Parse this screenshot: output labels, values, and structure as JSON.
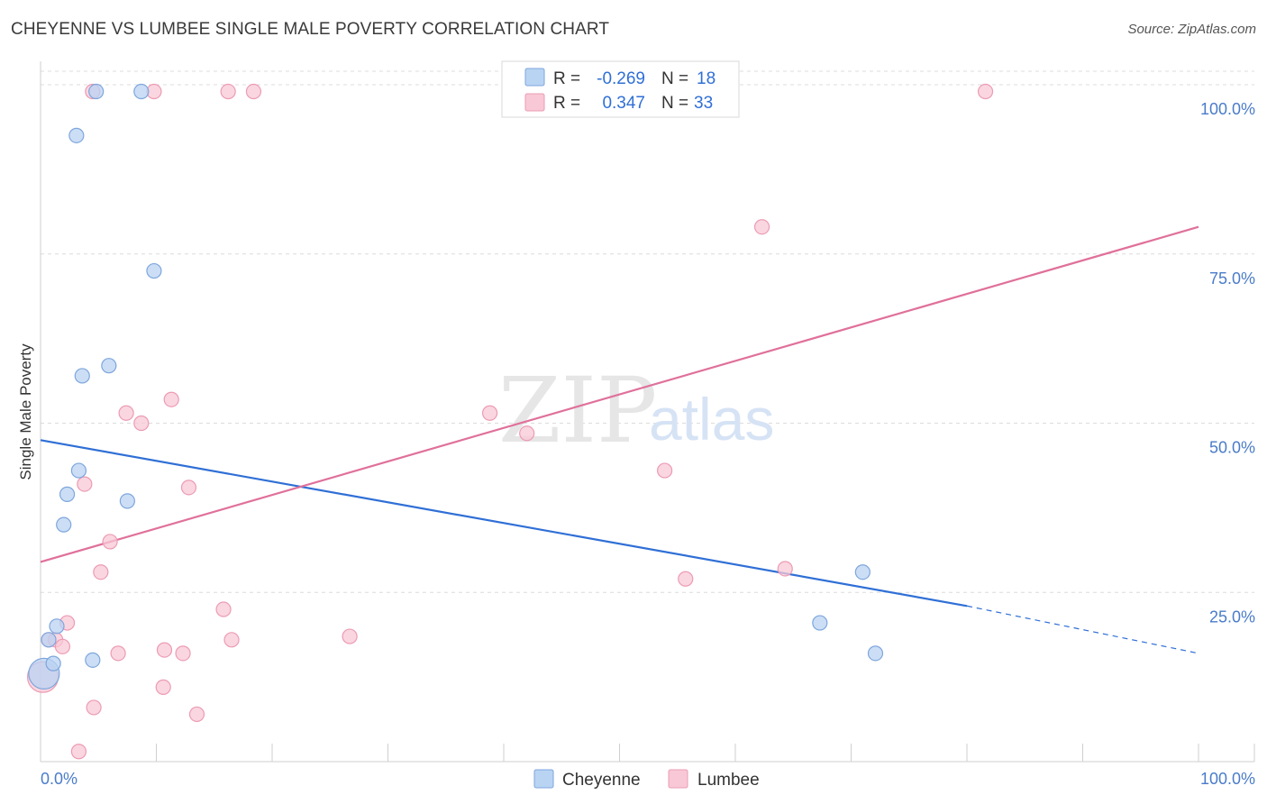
{
  "header": {
    "title": "CHEYENNE VS LUMBEE SINGLE MALE POVERTY CORRELATION CHART",
    "source": "Source: ZipAtlas.com"
  },
  "watermark": {
    "zip": "ZIP",
    "atlas": "atlas"
  },
  "colors": {
    "cheyenne_fill": "#b9d3f3",
    "cheyenne_stroke": "#7ea6dc",
    "cheyenne_line": "#2f6fd6",
    "lumbee_fill": "#f8c8d6",
    "lumbee_stroke": "#ec9bb4",
    "lumbee_line": "#e0709a",
    "grid": "#dcdcdc",
    "tick_label": "#4a7cc9"
  },
  "legend_top": {
    "rows": [
      {
        "r_label": "R =",
        "r_value": "-0.269",
        "n_label": "N =",
        "n_value": "18"
      },
      {
        "r_label": "R =",
        "r_value": "0.347",
        "n_label": "N =",
        "n_value": "33"
      }
    ]
  },
  "legend_bottom": {
    "items": [
      "Cheyenne",
      "Lumbee"
    ]
  },
  "chart_data": {
    "type": "scatter",
    "title": "CHEYENNE VS LUMBEE SINGLE MALE POVERTY CORRELATION CHART",
    "xlabel": "",
    "ylabel": "Single Male Poverty",
    "xlim": [
      0,
      100
    ],
    "ylim": [
      0,
      102
    ],
    "x_tick_labels": [
      "0.0%",
      "100.0%"
    ],
    "y_ticks": [
      25,
      50,
      75,
      100
    ],
    "y_tick_labels": [
      "25.0%",
      "50.0%",
      "75.0%",
      "100.0%"
    ],
    "series": [
      {
        "name": "Cheyenne",
        "r": -0.269,
        "n": 18,
        "points": [
          {
            "x": 0.3,
            "y": 13.0,
            "big": true
          },
          {
            "x": 0.7,
            "y": 18.0
          },
          {
            "x": 1.1,
            "y": 14.5
          },
          {
            "x": 1.4,
            "y": 20.0
          },
          {
            "x": 2.0,
            "y": 35.0
          },
          {
            "x": 2.3,
            "y": 39.5
          },
          {
            "x": 3.1,
            "y": 92.5
          },
          {
            "x": 3.3,
            "y": 43.0
          },
          {
            "x": 3.6,
            "y": 57.0
          },
          {
            "x": 4.5,
            "y": 15.0
          },
          {
            "x": 4.8,
            "y": 99.0
          },
          {
            "x": 5.9,
            "y": 58.5
          },
          {
            "x": 7.5,
            "y": 38.5
          },
          {
            "x": 8.7,
            "y": 99.0
          },
          {
            "x": 9.8,
            "y": 72.5
          },
          {
            "x": 67.3,
            "y": 20.5
          },
          {
            "x": 71.0,
            "y": 28.0
          },
          {
            "x": 72.1,
            "y": 16.0
          }
        ],
        "trend": {
          "x0": 0,
          "y0": 47.5,
          "x1": 80,
          "y1": 23.0,
          "dash_to_x": 100,
          "dash_to_y": 16.0
        }
      },
      {
        "name": "Lumbee",
        "r": 0.347,
        "n": 33,
        "points": [
          {
            "x": 0.2,
            "y": 12.5,
            "big": true
          },
          {
            "x": 0.7,
            "y": 18.0
          },
          {
            "x": 1.3,
            "y": 18.0
          },
          {
            "x": 1.9,
            "y": 17.0
          },
          {
            "x": 2.3,
            "y": 20.5
          },
          {
            "x": 3.3,
            "y": 1.5
          },
          {
            "x": 3.8,
            "y": 41.0
          },
          {
            "x": 4.6,
            "y": 8.0
          },
          {
            "x": 4.5,
            "y": 99.0
          },
          {
            "x": 5.2,
            "y": 28.0
          },
          {
            "x": 6.0,
            "y": 32.5
          },
          {
            "x": 6.7,
            "y": 16.0
          },
          {
            "x": 7.4,
            "y": 51.5
          },
          {
            "x": 8.7,
            "y": 50.0
          },
          {
            "x": 9.8,
            "y": 99.0
          },
          {
            "x": 10.6,
            "y": 11.0
          },
          {
            "x": 10.7,
            "y": 16.5
          },
          {
            "x": 11.3,
            "y": 53.5
          },
          {
            "x": 12.3,
            "y": 16.0
          },
          {
            "x": 12.8,
            "y": 40.5
          },
          {
            "x": 13.5,
            "y": 7.0
          },
          {
            "x": 15.8,
            "y": 22.5
          },
          {
            "x": 16.2,
            "y": 99.0
          },
          {
            "x": 16.5,
            "y": 18.0
          },
          {
            "x": 18.4,
            "y": 99.0
          },
          {
            "x": 26.7,
            "y": 18.5
          },
          {
            "x": 38.8,
            "y": 51.5
          },
          {
            "x": 42.0,
            "y": 48.5
          },
          {
            "x": 53.9,
            "y": 43.0
          },
          {
            "x": 55.7,
            "y": 27.0
          },
          {
            "x": 62.3,
            "y": 79.0
          },
          {
            "x": 64.3,
            "y": 28.5
          },
          {
            "x": 81.6,
            "y": 99.0
          }
        ],
        "trend": {
          "x0": 0,
          "y0": 29.5,
          "x1": 100,
          "y1": 79.0
        }
      }
    ]
  }
}
